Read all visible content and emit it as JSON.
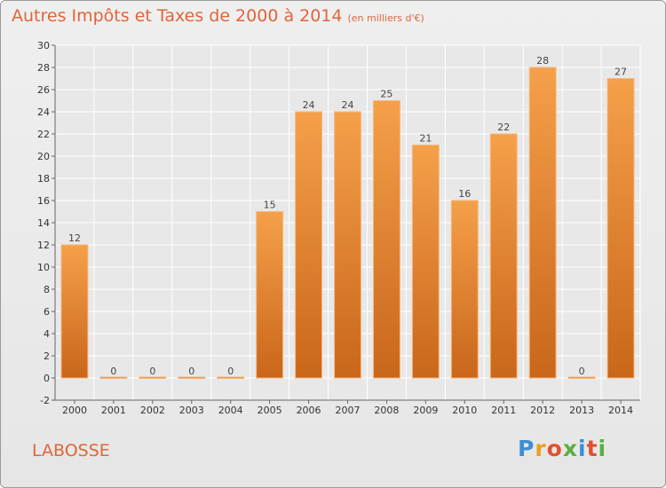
{
  "header": {
    "title": "Autres Impôts et Taxes de 2000 à 2014",
    "subtitle": "(en milliers d'€)"
  },
  "footer": {
    "place": "LABOSSE",
    "logo": "Proxiti"
  },
  "colors": {
    "bar": "#f08a30",
    "bar_dark": "#c9661a",
    "title": "#e0653a",
    "grid": "#ffffff"
  },
  "chart_data": {
    "type": "bar",
    "title": "Autres Impôts et Taxes de 2000 à 2014",
    "subtitle": "(en milliers d'€)",
    "categories": [
      "2000",
      "2001",
      "2002",
      "2003",
      "2004",
      "2005",
      "2006",
      "2007",
      "2008",
      "2009",
      "2010",
      "2011",
      "2012",
      "2013",
      "2014"
    ],
    "values": [
      12,
      0,
      0,
      0,
      0,
      15,
      24,
      24,
      25,
      21,
      16,
      22,
      28,
      0,
      27
    ],
    "ylim": [
      -2,
      30
    ],
    "yticks": [
      -2,
      0,
      2,
      4,
      6,
      8,
      10,
      12,
      14,
      16,
      18,
      20,
      22,
      24,
      26,
      28,
      30
    ],
    "grid": true,
    "xlabel": "",
    "ylabel": ""
  }
}
